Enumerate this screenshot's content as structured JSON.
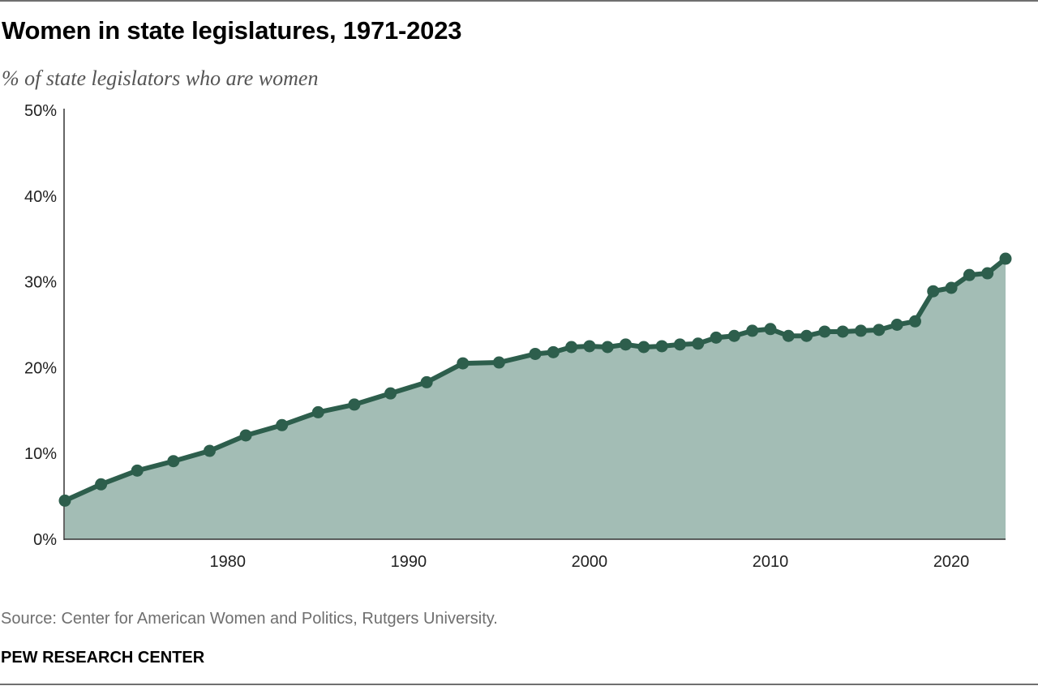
{
  "title": "Women in state legislatures, 1971-2023",
  "subtitle": "% of state legislators who are women",
  "source": "Source: Center for American Women and Politics, Rutgers University.",
  "brand": "PEW RESEARCH CENTER",
  "colors": {
    "line": "#2d5e4c",
    "area": "#a3bdb5",
    "axis": "#333333"
  },
  "chart_data": {
    "type": "area",
    "title": "Women in state legislatures, 1971-2023",
    "subtitle": "% of state legislators who are women",
    "xlabel": "",
    "ylabel": "",
    "xlim": [
      1971,
      2023
    ],
    "ylim": [
      0,
      50
    ],
    "y_ticks": [
      0,
      10,
      20,
      30,
      40,
      50
    ],
    "y_tick_labels": [
      "0%",
      "10%",
      "20%",
      "30%",
      "40%",
      "50%"
    ],
    "x_ticks": [
      1980,
      1990,
      2000,
      2010,
      2020
    ],
    "x_tick_labels": [
      "1980",
      "1990",
      "2000",
      "2010",
      "2020"
    ],
    "grid": false,
    "markers": true,
    "series": [
      {
        "x": [
          1971,
          1973,
          1975,
          1977,
          1979,
          1981,
          1983,
          1985,
          1987,
          1989,
          1991,
          1993,
          1995,
          1997,
          1998,
          1999,
          2000,
          2001,
          2002,
          2003,
          2004,
          2005,
          2006,
          2007,
          2008,
          2009,
          2010,
          2011,
          2012,
          2013,
          2014,
          2015,
          2016,
          2017,
          2018,
          2019,
          2020,
          2021,
          2022,
          2023
        ],
        "values": [
          4.5,
          6.4,
          8.0,
          9.1,
          10.3,
          12.1,
          13.3,
          14.8,
          15.7,
          17.0,
          18.3,
          20.5,
          20.6,
          21.6,
          21.8,
          22.4,
          22.5,
          22.4,
          22.7,
          22.4,
          22.5,
          22.7,
          22.8,
          23.5,
          23.7,
          24.3,
          24.5,
          23.7,
          23.7,
          24.2,
          24.2,
          24.3,
          24.4,
          25.0,
          25.4,
          28.9,
          29.3,
          30.8,
          31.0,
          32.7
        ]
      }
    ]
  }
}
